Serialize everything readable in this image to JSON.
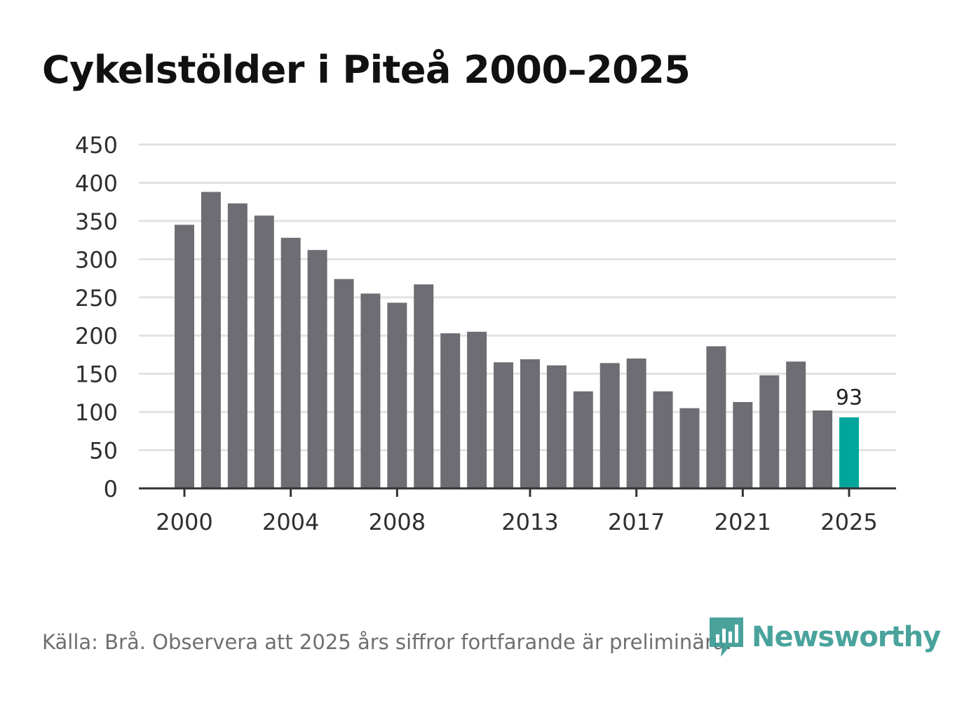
{
  "colors": {
    "bar": "#6e6d73",
    "highlight": "#00a69c",
    "grid": "#e2e2e2",
    "axis": "#333333",
    "brand": "#3a9c94"
  },
  "chart_data": {
    "type": "bar",
    "title": "Cykelstölder i Piteå 2000–2025",
    "xlabel": "",
    "ylabel": "",
    "ylim": [
      0,
      450
    ],
    "yticks": [
      0,
      50,
      100,
      150,
      200,
      250,
      300,
      350,
      400,
      450
    ],
    "grid": true,
    "categories": [
      "2000",
      "2001",
      "2002",
      "2003",
      "2004",
      "2005",
      "2006",
      "2007",
      "2008",
      "2009",
      "2010",
      "2011",
      "2012",
      "2013",
      "2014",
      "2015",
      "2016",
      "2017",
      "2018",
      "2019",
      "2020",
      "2021",
      "2022",
      "2023",
      "2024",
      "2025"
    ],
    "values": [
      345,
      388,
      373,
      357,
      328,
      312,
      274,
      255,
      243,
      267,
      203,
      205,
      165,
      169,
      161,
      127,
      164,
      170,
      127,
      105,
      186,
      113,
      148,
      166,
      102,
      93
    ],
    "xtick_labels": [
      "2000",
      "2004",
      "2008",
      "2013",
      "2017",
      "2021",
      "2025"
    ],
    "highlight_category": "2025",
    "highlight_label": "93"
  },
  "footer": {
    "source": "Källa: Brå. Observera att 2025 års siffror fortfarande är preliminära.",
    "brand": "Newsworthy"
  }
}
